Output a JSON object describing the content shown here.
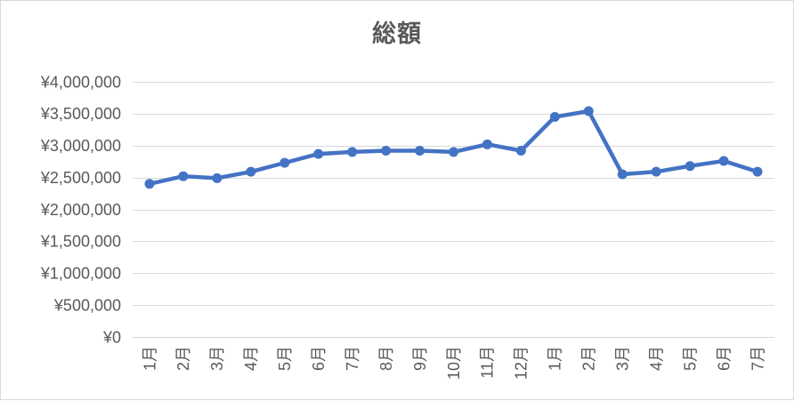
{
  "chart_data": {
    "type": "line",
    "title": "総額",
    "categories": [
      "1月",
      "2月",
      "3月",
      "4月",
      "5月",
      "6月",
      "7月",
      "8月",
      "9月",
      "10月",
      "11月",
      "12月",
      "1月",
      "2月",
      "3月",
      "4月",
      "5月",
      "6月",
      "7月"
    ],
    "values": [
      2400000,
      2520000,
      2490000,
      2590000,
      2730000,
      2870000,
      2900000,
      2920000,
      2920000,
      2900000,
      3020000,
      2920000,
      3450000,
      3540000,
      2550000,
      2590000,
      2680000,
      2760000,
      2590000
    ],
    "ylim": [
      0,
      4000000
    ],
    "y_ticks": [
      0,
      500000,
      1000000,
      1500000,
      2000000,
      2500000,
      3000000,
      3500000,
      4000000
    ],
    "y_tick_labels": [
      "¥0",
      "¥500,000",
      "¥1,000,000",
      "¥1,500,000",
      "¥2,000,000",
      "¥2,500,000",
      "¥3,000,000",
      "¥3,500,000",
      "¥4,000,000"
    ],
    "x_label_rotation": -90,
    "grid": true,
    "legend": "none",
    "line_color": "#4472C4",
    "marker": "circle"
  },
  "colors": {
    "accent": "#4472C4",
    "text": "#595959",
    "gridline": "#d9d9d9",
    "border": "#d9d9d9",
    "background": "#ffffff"
  }
}
